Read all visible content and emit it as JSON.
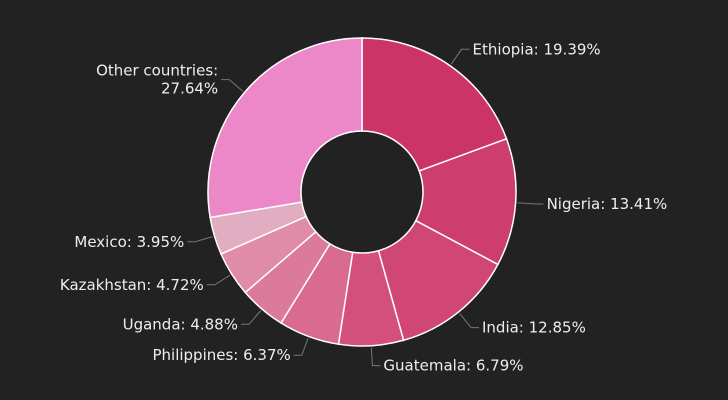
{
  "chart_data": {
    "type": "pie",
    "values": [
      19.39,
      13.41,
      12.85,
      6.79,
      6.37,
      4.88,
      4.72,
      3.95,
      27.64
    ],
    "value_labels": [
      "Ethiopia: 19.39%",
      "Nigeria: 13.41%",
      "India: 12.85%",
      "Guatemala: 6.79%",
      "Philippines: 6.37%",
      "Uganda: 4.88%",
      "Kazakhstan: 4.72%",
      "Mexico: 3.95%",
      "Other countries:\n27.64%"
    ],
    "colors": [
      "#cc3366",
      "#cd3d6d",
      "#d04674",
      "#d4507c",
      "#d96a90",
      "#dc7a9b",
      "#e08ba8",
      "#e0aec0",
      "#ec88c8"
    ]
  }
}
